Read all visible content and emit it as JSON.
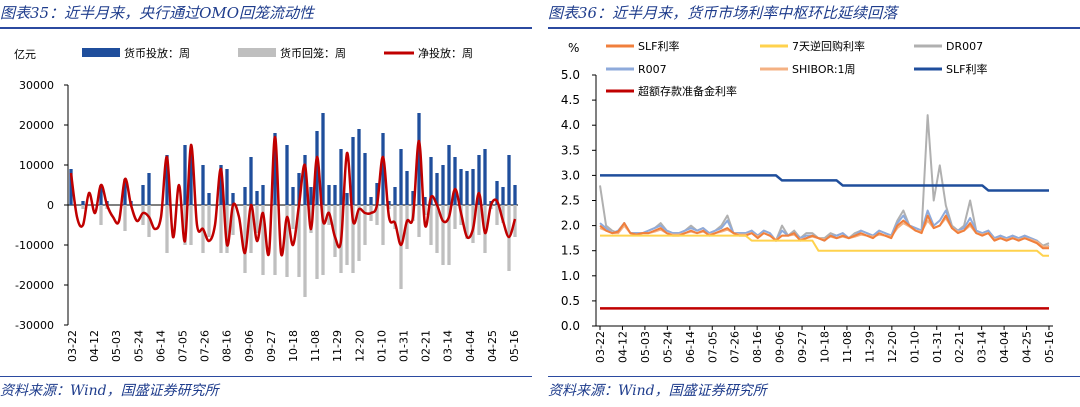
{
  "chart_data": [
    {
      "type": "bar+line",
      "title": "图表35：近半月来，央行通过OMO回笼流动性",
      "source": "资料来源：Wind，国盛证券研究所",
      "ylabel": "亿元",
      "ylim": [
        -30000,
        30000
      ],
      "yticks": [
        "30000",
        "20000",
        "10000",
        "0",
        "-10000",
        "-20000",
        "-30000"
      ],
      "x_tick_labels": [
        "03-22",
        "04-12",
        "05-03",
        "05-24",
        "06-14",
        "07-05",
        "07-26",
        "08-16",
        "09-06",
        "09-27",
        "10-18",
        "11-08",
        "11-29",
        "12-20",
        "01-10",
        "01-31",
        "02-21",
        "03-14",
        "04-04",
        "04-25",
        "05-16"
      ],
      "colors": {
        "injection": "#1f4e9c",
        "withdrawal": "#bfbfbf",
        "net": "#c00000"
      },
      "series": [
        {
          "name": "货币投放：周",
          "kind": "bar",
          "values": [
            9000,
            0,
            1000,
            0,
            0,
            5000,
            1000,
            0,
            0,
            6500,
            1000,
            0,
            5000,
            8000,
            0,
            0,
            12500,
            0,
            0,
            15000,
            13000,
            0,
            10000,
            3000,
            0,
            10000,
            9000,
            3000,
            0,
            4500,
            12000,
            3500,
            5000,
            0,
            18000,
            0,
            15000,
            4500,
            8000,
            12500,
            4500,
            18500,
            23000,
            5000,
            5000,
            14000,
            3000,
            17000,
            19000,
            13000,
            2000,
            5500,
            18000,
            1000,
            4500,
            14000,
            8500,
            3500,
            23000,
            2000,
            12000,
            8000,
            10000,
            15000,
            12000,
            9000,
            8500,
            9000,
            12500,
            14000,
            1000,
            6000,
            4500,
            12500,
            5000
          ]
        },
        {
          "name": "货币回笼：周",
          "kind": "bar",
          "values": [
            0,
            0,
            -1000,
            0,
            0,
            -5000,
            -1000,
            0,
            0,
            -6500,
            0,
            0,
            -5000,
            -8000,
            0,
            0,
            -12000,
            0,
            0,
            -10000,
            -10000,
            0,
            -12000,
            -8000,
            0,
            -12000,
            -12000,
            -7500,
            0,
            -17000,
            -12000,
            -7000,
            -17500,
            0,
            -17500,
            0,
            -18000,
            -6000,
            -18000,
            -23000,
            -7000,
            -18500,
            -17500,
            -5000,
            -13000,
            -17000,
            -15000,
            -17000,
            -14000,
            -10000,
            -4000,
            -5000,
            -10000,
            -1000,
            -6000,
            -21000,
            -11000,
            -4000,
            -8000,
            -2500,
            -10000,
            -12000,
            -15000,
            -15000,
            -6000,
            -5000,
            -8500,
            -9500,
            -7500,
            -12000,
            -1000,
            -5000,
            -4500,
            -16500,
            -8000
          ]
        },
        {
          "name": "净投放：周",
          "kind": "line",
          "values": [
            8000,
            -3000,
            -5000,
            3000,
            -2000,
            5000,
            0,
            -3000,
            -4000,
            6500,
            0,
            -4000,
            -2000,
            -3000,
            -6000,
            -3000,
            12000,
            -8000,
            5000,
            -9000,
            15000,
            -5000,
            -6000,
            -9000,
            -5000,
            9000,
            -10000,
            0,
            -3000,
            -12000,
            0,
            -9000,
            -2000,
            -12000,
            17000,
            -12000,
            -3000,
            -10000,
            0,
            10000,
            -6000,
            12000,
            -4000,
            -2000,
            -8000,
            -9000,
            13000,
            -4000,
            -1000,
            -2000,
            -2000,
            0,
            12000,
            -3000,
            -4500,
            -10000,
            -4000,
            -3000,
            16000,
            -5000,
            2000,
            0,
            -4000,
            -3000,
            4000,
            -2000,
            -8000,
            -6000,
            3000,
            -7000,
            0,
            1000,
            -4000,
            -8000,
            -3500
          ]
        }
      ]
    },
    {
      "type": "line",
      "title": "图表36：近半月来，货币市场利率中枢环比延续回落",
      "source": "资料来源：Wind，国盛证券研究所",
      "ylabel": "%",
      "ylim": [
        0.0,
        5.0
      ],
      "yticks": [
        "5.0",
        "4.5",
        "4.0",
        "3.5",
        "3.0",
        "2.5",
        "2.0",
        "1.5",
        "1.0",
        "0.5",
        "0.0"
      ],
      "x_tick_labels": [
        "03-22",
        "04-12",
        "05-03",
        "05-24",
        "06-14",
        "07-05",
        "07-26",
        "08-16",
        "09-06",
        "09-27",
        "10-18",
        "11-08",
        "11-29",
        "12-20",
        "01-10",
        "01-31",
        "02-21",
        "03-14",
        "04-04",
        "04-25",
        "05-16"
      ],
      "legend": [
        "SLF利率",
        "7天逆回购利率",
        "DR007",
        "R007",
        "SHIBOR:1周",
        "SLF利率",
        "超额存款准备金利率"
      ],
      "series": [
        {
          "name": "SLF利率",
          "color": "#f07f3c",
          "values": [
            2.0,
            1.9,
            1.85,
            1.88,
            2.05,
            1.85,
            1.82,
            1.85,
            1.85,
            1.9,
            1.95,
            1.85,
            1.8,
            1.8,
            1.85,
            1.9,
            1.85,
            1.9,
            1.8,
            1.85,
            1.9,
            1.95,
            1.85,
            1.8,
            1.8,
            1.85,
            1.75,
            1.85,
            1.8,
            1.7,
            1.8,
            1.8,
            1.85,
            1.7,
            1.75,
            1.8,
            1.75,
            1.7,
            1.8,
            1.75,
            1.8,
            1.75,
            1.8,
            1.85,
            1.8,
            1.75,
            1.85,
            1.8,
            1.75,
            2.0,
            2.1,
            2.0,
            1.9,
            1.85,
            2.2,
            1.95,
            2.0,
            2.2,
            1.95,
            1.85,
            1.9,
            2.05,
            1.85,
            1.8,
            1.85,
            1.7,
            1.75,
            1.7,
            1.75,
            1.7,
            1.75,
            1.7,
            1.65,
            1.55,
            1.55
          ]
        },
        {
          "name": "7天逆回购利率",
          "color": "#ffd24d",
          "values": [
            1.8,
            1.8,
            1.8,
            1.8,
            1.8,
            1.8,
            1.8,
            1.8,
            1.8,
            1.8,
            1.8,
            1.8,
            1.8,
            1.8,
            1.8,
            1.8,
            1.8,
            1.8,
            1.8,
            1.8,
            1.8,
            1.8,
            1.8,
            1.8,
            1.8,
            1.7,
            1.7,
            1.7,
            1.7,
            1.7,
            1.7,
            1.7,
            1.7,
            1.7,
            1.7,
            1.7,
            1.5,
            1.5,
            1.5,
            1.5,
            1.5,
            1.5,
            1.5,
            1.5,
            1.5,
            1.5,
            1.5,
            1.5,
            1.5,
            1.5,
            1.5,
            1.5,
            1.5,
            1.5,
            1.5,
            1.5,
            1.5,
            1.5,
            1.5,
            1.5,
            1.5,
            1.5,
            1.5,
            1.5,
            1.5,
            1.5,
            1.5,
            1.5,
            1.5,
            1.5,
            1.5,
            1.5,
            1.5,
            1.4,
            1.4
          ]
        },
        {
          "name": "DR007",
          "color": "#b0b0b0",
          "values": [
            2.8,
            2.0,
            1.9,
            1.85,
            2.05,
            1.85,
            1.85,
            1.85,
            1.9,
            1.95,
            2.05,
            1.9,
            1.85,
            1.85,
            1.9,
            2.0,
            1.9,
            1.95,
            1.85,
            1.9,
            2.0,
            2.2,
            1.85,
            1.85,
            1.85,
            1.9,
            1.8,
            1.9,
            1.85,
            1.7,
            2.0,
            1.8,
            1.9,
            1.75,
            1.85,
            1.85,
            1.75,
            1.75,
            1.85,
            1.8,
            1.85,
            1.75,
            1.85,
            1.9,
            1.85,
            1.8,
            1.9,
            1.85,
            1.8,
            2.1,
            2.3,
            2.0,
            1.95,
            1.9,
            4.2,
            2.5,
            3.2,
            2.4,
            2.0,
            1.9,
            2.0,
            2.5,
            1.9,
            1.85,
            1.9,
            1.75,
            1.8,
            1.75,
            1.8,
            1.75,
            1.8,
            1.75,
            1.7,
            1.6,
            1.65
          ]
        },
        {
          "name": "R007",
          "color": "#8eaadb",
          "values": [
            2.05,
            1.95,
            1.85,
            1.9,
            2.05,
            1.85,
            1.85,
            1.85,
            1.9,
            1.95,
            2.0,
            1.9,
            1.85,
            1.85,
            1.9,
            1.95,
            1.9,
            1.95,
            1.85,
            1.9,
            1.95,
            2.1,
            1.85,
            1.85,
            1.85,
            1.9,
            1.8,
            1.9,
            1.85,
            1.7,
            1.9,
            1.8,
            1.85,
            1.75,
            1.8,
            1.8,
            1.75,
            1.7,
            1.8,
            1.8,
            1.85,
            1.75,
            1.8,
            1.9,
            1.85,
            1.8,
            1.9,
            1.85,
            1.8,
            2.05,
            2.2,
            2.0,
            1.95,
            1.9,
            2.3,
            2.0,
            2.1,
            2.3,
            1.95,
            1.9,
            1.95,
            2.15,
            1.9,
            1.85,
            1.9,
            1.75,
            1.8,
            1.75,
            1.8,
            1.75,
            1.8,
            1.75,
            1.7,
            1.55,
            1.6
          ]
        },
        {
          "name": "SHIBOR:1周",
          "color": "#f4b183",
          "values": [
            1.95,
            1.9,
            1.85,
            1.85,
            2.0,
            1.85,
            1.82,
            1.85,
            1.85,
            1.88,
            1.92,
            1.85,
            1.82,
            1.82,
            1.85,
            1.88,
            1.85,
            1.88,
            1.82,
            1.85,
            1.88,
            1.92,
            1.85,
            1.82,
            1.82,
            1.85,
            1.78,
            1.85,
            1.8,
            1.72,
            1.8,
            1.8,
            1.82,
            1.72,
            1.75,
            1.78,
            1.75,
            1.72,
            1.78,
            1.75,
            1.78,
            1.75,
            1.78,
            1.82,
            1.8,
            1.78,
            1.82,
            1.8,
            1.78,
            1.95,
            2.05,
            1.98,
            1.9,
            1.88,
            2.1,
            1.95,
            2.0,
            2.15,
            1.95,
            1.88,
            1.9,
            2.0,
            1.85,
            1.82,
            1.85,
            1.72,
            1.75,
            1.72,
            1.75,
            1.72,
            1.75,
            1.72,
            1.68,
            1.58,
            1.58
          ]
        },
        {
          "name": "SLF利率",
          "color": "#1f4e9c",
          "values": [
            3.0,
            3.0,
            3.0,
            3.0,
            3.0,
            3.0,
            3.0,
            3.0,
            3.0,
            3.0,
            3.0,
            3.0,
            3.0,
            3.0,
            3.0,
            3.0,
            3.0,
            3.0,
            3.0,
            3.0,
            3.0,
            3.0,
            3.0,
            3.0,
            3.0,
            3.0,
            3.0,
            3.0,
            3.0,
            3.0,
            2.9,
            2.9,
            2.9,
            2.9,
            2.9,
            2.9,
            2.9,
            2.9,
            2.9,
            2.9,
            2.8,
            2.8,
            2.8,
            2.8,
            2.8,
            2.8,
            2.8,
            2.8,
            2.8,
            2.8,
            2.8,
            2.8,
            2.8,
            2.8,
            2.8,
            2.8,
            2.8,
            2.8,
            2.8,
            2.8,
            2.8,
            2.8,
            2.8,
            2.8,
            2.7,
            2.7,
            2.7,
            2.7,
            2.7,
            2.7,
            2.7,
            2.7,
            2.7,
            2.7,
            2.7
          ]
        },
        {
          "name": "超额存款准备金利率",
          "color": "#c00000",
          "values": [
            0.35,
            0.35,
            0.35,
            0.35,
            0.35,
            0.35,
            0.35,
            0.35,
            0.35,
            0.35,
            0.35,
            0.35,
            0.35,
            0.35,
            0.35,
            0.35,
            0.35,
            0.35,
            0.35,
            0.35,
            0.35,
            0.35,
            0.35,
            0.35,
            0.35,
            0.35,
            0.35,
            0.35,
            0.35,
            0.35,
            0.35,
            0.35,
            0.35,
            0.35,
            0.35,
            0.35,
            0.35,
            0.35,
            0.35,
            0.35,
            0.35,
            0.35,
            0.35,
            0.35,
            0.35,
            0.35,
            0.35,
            0.35,
            0.35,
            0.35,
            0.35,
            0.35,
            0.35,
            0.35,
            0.35,
            0.35,
            0.35,
            0.35,
            0.35,
            0.35,
            0.35,
            0.35,
            0.35,
            0.35,
            0.35,
            0.35,
            0.35,
            0.35,
            0.35,
            0.35,
            0.35,
            0.35,
            0.35,
            0.35,
            0.35
          ]
        }
      ]
    }
  ]
}
